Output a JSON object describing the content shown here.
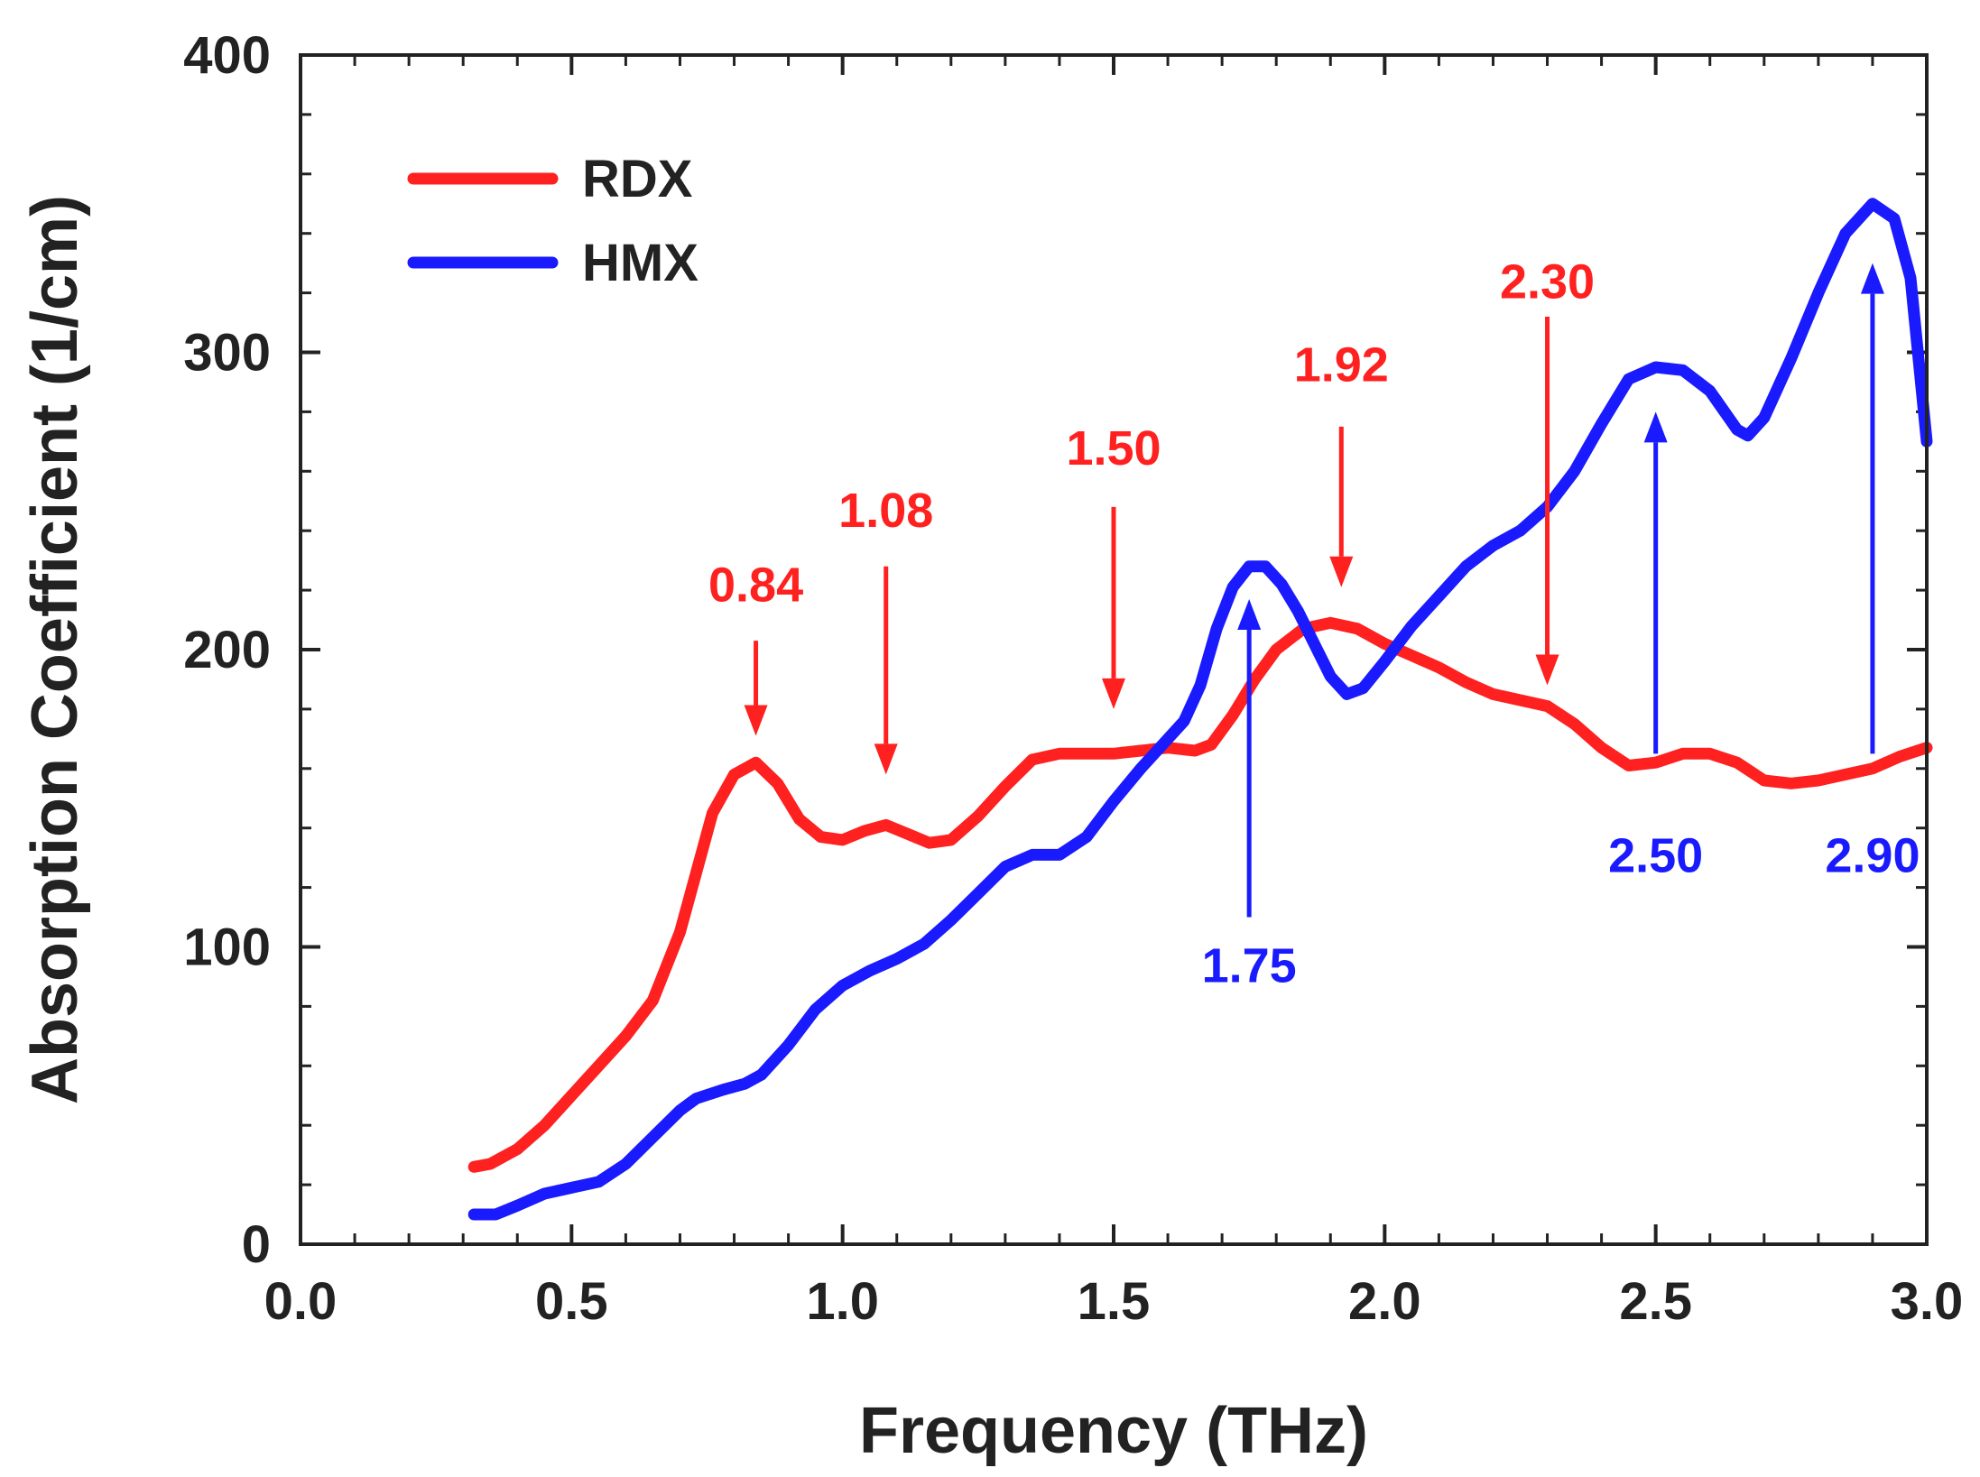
{
  "chart_data": {
    "type": "line",
    "title": "",
    "xlabel": "Frequency (THz)",
    "ylabel": "Absorption Coefficient (1/cm)",
    "xlim": [
      0.0,
      3.0
    ],
    "ylim": [
      0,
      400
    ],
    "xticks": [
      0.0,
      0.5,
      1.0,
      1.5,
      2.0,
      2.5,
      3.0
    ],
    "xtick_labels": [
      "0.0",
      "0.5",
      "1.0",
      "1.5",
      "2.0",
      "2.5",
      "3.0"
    ],
    "yticks": [
      0,
      100,
      200,
      300,
      400
    ],
    "ytick_labels": [
      "0",
      "100",
      "200",
      "300",
      "400"
    ],
    "x_minor_step": 0.1,
    "y_minor_step": 20,
    "grid": false,
    "legend_position": "top-left",
    "series": [
      {
        "name": "RDX",
        "color": "#ff2020",
        "points": [
          [
            0.32,
            26
          ],
          [
            0.35,
            27
          ],
          [
            0.4,
            32
          ],
          [
            0.45,
            40
          ],
          [
            0.5,
            50
          ],
          [
            0.55,
            60
          ],
          [
            0.6,
            70
          ],
          [
            0.65,
            82
          ],
          [
            0.7,
            105
          ],
          [
            0.73,
            125
          ],
          [
            0.76,
            145
          ],
          [
            0.8,
            158
          ],
          [
            0.84,
            162
          ],
          [
            0.88,
            155
          ],
          [
            0.92,
            143
          ],
          [
            0.96,
            137
          ],
          [
            1.0,
            136
          ],
          [
            1.04,
            139
          ],
          [
            1.08,
            141
          ],
          [
            1.12,
            138
          ],
          [
            1.16,
            135
          ],
          [
            1.2,
            136
          ],
          [
            1.25,
            144
          ],
          [
            1.3,
            154
          ],
          [
            1.35,
            163
          ],
          [
            1.4,
            165
          ],
          [
            1.45,
            165
          ],
          [
            1.5,
            165
          ],
          [
            1.55,
            166
          ],
          [
            1.6,
            167
          ],
          [
            1.65,
            166
          ],
          [
            1.68,
            168
          ],
          [
            1.72,
            178
          ],
          [
            1.76,
            190
          ],
          [
            1.8,
            200
          ],
          [
            1.85,
            207
          ],
          [
            1.9,
            209
          ],
          [
            1.95,
            207
          ],
          [
            2.0,
            202
          ],
          [
            2.05,
            198
          ],
          [
            2.1,
            194
          ],
          [
            2.15,
            189
          ],
          [
            2.2,
            185
          ],
          [
            2.25,
            183
          ],
          [
            2.3,
            181
          ],
          [
            2.35,
            175
          ],
          [
            2.4,
            167
          ],
          [
            2.45,
            161
          ],
          [
            2.5,
            162
          ],
          [
            2.55,
            165
          ],
          [
            2.6,
            165
          ],
          [
            2.65,
            162
          ],
          [
            2.7,
            156
          ],
          [
            2.75,
            155
          ],
          [
            2.8,
            156
          ],
          [
            2.85,
            158
          ],
          [
            2.9,
            160
          ],
          [
            2.95,
            164
          ],
          [
            3.0,
            167
          ]
        ]
      },
      {
        "name": "HMX",
        "color": "#1a1aff",
        "points": [
          [
            0.32,
            10
          ],
          [
            0.36,
            10
          ],
          [
            0.4,
            13
          ],
          [
            0.45,
            17
          ],
          [
            0.5,
            19
          ],
          [
            0.55,
            21
          ],
          [
            0.6,
            27
          ],
          [
            0.65,
            36
          ],
          [
            0.7,
            45
          ],
          [
            0.73,
            49
          ],
          [
            0.78,
            52
          ],
          [
            0.82,
            54
          ],
          [
            0.85,
            57
          ],
          [
            0.9,
            67
          ],
          [
            0.95,
            79
          ],
          [
            1.0,
            87
          ],
          [
            1.05,
            92
          ],
          [
            1.1,
            96
          ],
          [
            1.15,
            101
          ],
          [
            1.2,
            109
          ],
          [
            1.25,
            118
          ],
          [
            1.3,
            127
          ],
          [
            1.35,
            131
          ],
          [
            1.4,
            131
          ],
          [
            1.45,
            137
          ],
          [
            1.5,
            149
          ],
          [
            1.55,
            160
          ],
          [
            1.6,
            170
          ],
          [
            1.63,
            176
          ],
          [
            1.66,
            188
          ],
          [
            1.69,
            207
          ],
          [
            1.72,
            221
          ],
          [
            1.75,
            228
          ],
          [
            1.78,
            228
          ],
          [
            1.81,
            222
          ],
          [
            1.84,
            213
          ],
          [
            1.87,
            202
          ],
          [
            1.9,
            191
          ],
          [
            1.93,
            185
          ],
          [
            1.96,
            187
          ],
          [
            2.0,
            196
          ],
          [
            2.05,
            208
          ],
          [
            2.1,
            218
          ],
          [
            2.15,
            228
          ],
          [
            2.2,
            235
          ],
          [
            2.25,
            240
          ],
          [
            2.3,
            248
          ],
          [
            2.35,
            260
          ],
          [
            2.4,
            276
          ],
          [
            2.45,
            291
          ],
          [
            2.5,
            295
          ],
          [
            2.55,
            294
          ],
          [
            2.6,
            287
          ],
          [
            2.65,
            274
          ],
          [
            2.67,
            272
          ],
          [
            2.7,
            278
          ],
          [
            2.75,
            298
          ],
          [
            2.8,
            320
          ],
          [
            2.85,
            340
          ],
          [
            2.9,
            350
          ],
          [
            2.94,
            345
          ],
          [
            2.97,
            325
          ],
          [
            3.0,
            270
          ]
        ]
      }
    ],
    "annotations": [
      {
        "label": "0.84",
        "series": "RDX",
        "color": "#ff2020",
        "direction": "down",
        "x": 0.84,
        "tip": 171,
        "tail": 203,
        "text_y": 222
      },
      {
        "label": "1.08",
        "series": "RDX",
        "color": "#ff2020",
        "direction": "down",
        "x": 1.08,
        "tip": 158,
        "tail": 228,
        "text_y": 247
      },
      {
        "label": "1.50",
        "series": "RDX",
        "color": "#ff2020",
        "direction": "down",
        "x": 1.5,
        "tip": 180,
        "tail": 248,
        "text_y": 268
      },
      {
        "label": "1.92",
        "series": "RDX",
        "color": "#ff2020",
        "direction": "down",
        "x": 1.92,
        "tip": 221,
        "tail": 275,
        "text_y": 296
      },
      {
        "label": "2.30",
        "series": "RDX",
        "color": "#ff2020",
        "direction": "down",
        "x": 2.3,
        "tip": 188,
        "tail": 312,
        "text_y": 324
      },
      {
        "label": "1.75",
        "series": "HMX",
        "color": "#1a1aff",
        "direction": "up",
        "x": 1.75,
        "tip": 217,
        "tail": 110,
        "text_y": 94
      },
      {
        "label": "2.50",
        "series": "HMX",
        "color": "#1a1aff",
        "direction": "up",
        "x": 2.5,
        "tip": 280,
        "tail": 165,
        "text_y": 131
      },
      {
        "label": "2.90",
        "series": "HMX",
        "color": "#1a1aff",
        "direction": "up",
        "x": 2.9,
        "tip": 330,
        "tail": 165,
        "text_y": 131
      }
    ]
  }
}
